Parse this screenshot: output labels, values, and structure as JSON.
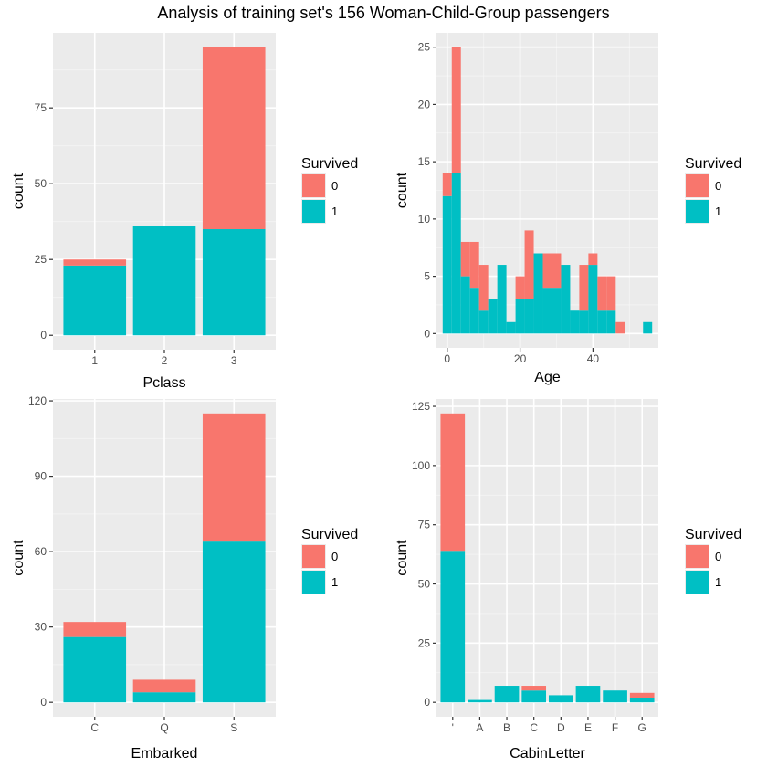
{
  "title": "Analysis of training set's 156 Woman-Child-Group passengers",
  "colors": {
    "survived_0": "#F8766D",
    "survived_1": "#00BFC4",
    "panel_bg": "#EBEBEB",
    "grid_major": "#FFFFFF",
    "grid_minor": "#F5F5F5",
    "tick": "#333333"
  },
  "chart_data": [
    {
      "id": "pclass",
      "type": "bar",
      "stacked": true,
      "xlabel": "Pclass",
      "ylabel": "count",
      "categories": [
        "1",
        "2",
        "3"
      ],
      "series": [
        {
          "name": "1",
          "color": "#00BFC4",
          "values": [
            23,
            36,
            35
          ]
        },
        {
          "name": "0",
          "color": "#F8766D",
          "values": [
            2,
            0,
            60
          ]
        }
      ],
      "ylim": [
        -4.75,
        99.75
      ],
      "yticks": [
        0,
        25,
        50,
        75
      ],
      "legend": {
        "title": "Survived",
        "entries": [
          "0",
          "1"
        ],
        "position": "right"
      },
      "grid": true
    },
    {
      "id": "age",
      "type": "histogram",
      "stacked": true,
      "xlabel": "Age",
      "ylabel": "count",
      "binwidth": 2.5,
      "bin_centers": [
        0,
        2.5,
        5,
        7.5,
        10,
        12.5,
        15,
        17.5,
        20,
        22.5,
        25,
        27.5,
        30,
        32.5,
        35,
        37.5,
        40,
        42.5,
        45,
        47.5,
        50,
        52.5,
        55
      ],
      "series": [
        {
          "name": "1",
          "color": "#00BFC4",
          "values": [
            12,
            14,
            5,
            4,
            2,
            3,
            6,
            1,
            3,
            3,
            7,
            4,
            4,
            6,
            2,
            2,
            6,
            2,
            2,
            0,
            0,
            0,
            1
          ]
        },
        {
          "name": "0",
          "color": "#F8766D",
          "values": [
            2,
            11,
            3,
            4,
            4,
            0,
            0,
            0,
            2,
            6,
            0,
            3,
            3,
            0,
            0,
            4,
            1,
            3,
            3,
            1,
            0,
            0,
            0
          ]
        }
      ],
      "xlim": [
        -2.95,
        57.95
      ],
      "xticks": [
        0,
        20,
        40
      ],
      "ylim": [
        -1.25,
        26.25
      ],
      "yticks": [
        0,
        5,
        10,
        15,
        20,
        25
      ],
      "legend": {
        "title": "Survived",
        "entries": [
          "0",
          "1"
        ],
        "position": "right"
      },
      "grid": true
    },
    {
      "id": "embarked",
      "type": "bar",
      "stacked": true,
      "xlabel": "Embarked",
      "ylabel": "count",
      "categories": [
        "C",
        "Q",
        "S"
      ],
      "series": [
        {
          "name": "1",
          "color": "#00BFC4",
          "values": [
            26,
            4,
            64
          ]
        },
        {
          "name": "0",
          "color": "#F8766D",
          "values": [
            6,
            5,
            51
          ]
        }
      ],
      "ylim": [
        -5.75,
        120.75
      ],
      "yticks": [
        0,
        30,
        60,
        90,
        120
      ],
      "legend": {
        "title": "Survived",
        "entries": [
          "0",
          "1"
        ],
        "position": "right"
      },
      "grid": true
    },
    {
      "id": "cabin",
      "type": "bar",
      "stacked": true,
      "xlabel": "CabinLetter",
      "ylabel": "count",
      "categories": [
        "'",
        "A",
        "B",
        "C",
        "D",
        "E",
        "F",
        "G"
      ],
      "series": [
        {
          "name": "1",
          "color": "#00BFC4",
          "values": [
            64,
            1,
            7,
            5,
            3,
            7,
            5,
            2
          ]
        },
        {
          "name": "0",
          "color": "#F8766D",
          "values": [
            58,
            0,
            0,
            2,
            0,
            0,
            0,
            2
          ]
        }
      ],
      "ylim": [
        -6.1,
        128.1
      ],
      "yticks": [
        0,
        25,
        50,
        75,
        100,
        125
      ],
      "legend": {
        "title": "Survived",
        "entries": [
          "0",
          "1"
        ],
        "position": "right"
      },
      "grid": true
    }
  ]
}
